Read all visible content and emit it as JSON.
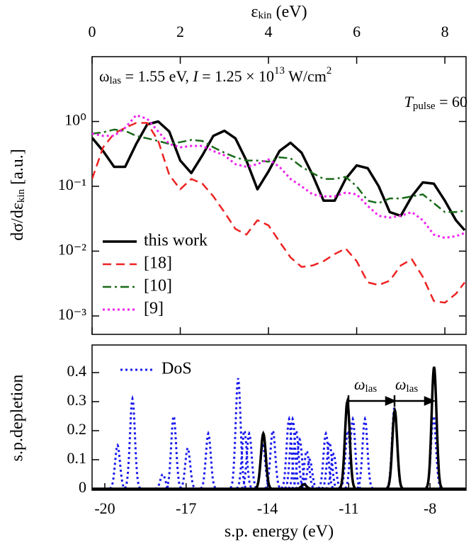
{
  "chart_data": [
    {
      "type": "line",
      "xlabel": [
        "ε",
        "kin",
        " (eV)"
      ],
      "ylabel": [
        "dσ/dε",
        "kin",
        " [a.u.]"
      ],
      "annotations": [
        [
          "ω",
          "las",
          " = 1.55 eV, ",
          "I",
          " = 1.25 × 10",
          "13",
          " W/cm",
          "2"
        ],
        [
          "T",
          "pulse",
          " = 60"
        ]
      ],
      "x": [
        0,
        0.25,
        0.5,
        0.75,
        1.0,
        1.25,
        1.5,
        1.75,
        2.0,
        2.25,
        2.5,
        2.75,
        3.0,
        3.25,
        3.5,
        3.75,
        4.0,
        4.25,
        4.5,
        4.75,
        5.0,
        5.25,
        5.5,
        5.75,
        6.0,
        6.25,
        6.5,
        6.75,
        7.0,
        7.25,
        7.5,
        7.75,
        8.0,
        8.25,
        8.45
      ],
      "series": [
        {
          "name": "this work",
          "color": "#000000",
          "dash": "solid",
          "values": [
            0.56,
            0.35,
            0.2,
            0.2,
            0.45,
            0.9,
            1.0,
            0.7,
            0.25,
            0.16,
            0.3,
            0.6,
            0.72,
            0.55,
            0.25,
            0.09,
            0.17,
            0.35,
            0.47,
            0.33,
            0.15,
            0.06,
            0.06,
            0.13,
            0.21,
            0.19,
            0.1,
            0.04,
            0.035,
            0.07,
            0.115,
            0.11,
            0.06,
            0.03,
            0.021
          ]
        },
        {
          "name": "[18]",
          "color": "#ee2222",
          "dash": "dashed",
          "values": [
            0.13,
            0.4,
            0.65,
            0.8,
            0.95,
            0.95,
            0.5,
            0.15,
            0.09,
            0.13,
            0.11,
            0.07,
            0.04,
            0.022,
            0.018,
            0.03,
            0.025,
            0.014,
            0.008,
            0.0057,
            0.006,
            0.007,
            0.009,
            0.011,
            0.007,
            0.0033,
            0.003,
            0.0035,
            0.006,
            0.0075,
            0.004,
            0.0017,
            0.0016,
            0.0022,
            0.0033
          ]
        },
        {
          "name": "[10]",
          "color": "#1a6a1a",
          "dash": "dashdot",
          "values": [
            0.65,
            0.68,
            0.75,
            0.72,
            0.6,
            0.55,
            0.5,
            0.45,
            0.48,
            0.52,
            0.5,
            0.4,
            0.33,
            0.28,
            0.25,
            0.25,
            0.24,
            0.28,
            0.27,
            0.2,
            0.16,
            0.13,
            0.13,
            0.14,
            0.1,
            0.06,
            0.055,
            0.065,
            0.065,
            0.07,
            0.075,
            0.055,
            0.04,
            0.04,
            0.042
          ]
        },
        {
          "name": "[9]",
          "color": "#ee22ee",
          "dash": "dotted",
          "values": [
            0.65,
            0.6,
            0.6,
            0.8,
            1.25,
            1.1,
            0.7,
            0.45,
            0.4,
            0.42,
            0.42,
            0.35,
            0.3,
            0.22,
            0.2,
            0.22,
            0.26,
            0.2,
            0.13,
            0.1,
            0.075,
            0.07,
            0.07,
            0.08,
            0.075,
            0.05,
            0.035,
            0.033,
            0.035,
            0.04,
            0.03,
            0.018,
            0.016,
            0.017,
            0.019
          ]
        }
      ],
      "xlim": [
        0,
        8.48
      ],
      "ylim": [
        0.00052,
        10
      ],
      "log_y": true,
      "xticks": [
        0,
        2,
        4,
        6,
        8
      ],
      "yticks": [
        {
          "value": 1,
          "label": "10⁰"
        },
        {
          "value": 0.1,
          "label": "10⁻¹"
        },
        {
          "value": 0.01,
          "label": "10⁻²"
        },
        {
          "value": 0.001,
          "label": "10⁻³"
        }
      ],
      "legend": "lower left"
    },
    {
      "type": "spectrum",
      "xlabel": "s.p. energy (eV)",
      "ylabel": "s.p.depletion",
      "annotations": [
        [
          "ω",
          "las"
        ],
        [
          "ω",
          "las"
        ]
      ],
      "series": [
        {
          "color": "#000000",
          "dash": "solid",
          "x": [
            -14.15,
            -12.65,
            -11.05,
            -9.3,
            -7.85
          ],
          "values": [
            0.19,
            0.015,
            0.3,
            0.27,
            0.42
          ]
        },
        {
          "name": "DoS",
          "color": "#1a1aee",
          "dash": "dotted",
          "x": [
            -19.53,
            -18.98,
            -17.86,
            -17.46,
            -16.94,
            -16.18,
            -15.08,
            -14.85,
            -14.67,
            -14.17,
            -13.8,
            -13.2,
            -13.07,
            -12.94,
            -12.81,
            -12.55,
            -12.44,
            -11.84,
            -11.71,
            -11.56,
            -11.03,
            -10.85,
            -10.4,
            -9.31,
            -7.87
          ],
          "values": [
            0.15,
            0.31,
            0.05,
            0.25,
            0.14,
            0.19,
            0.38,
            0.2,
            0.19,
            0.15,
            0.2,
            0.24,
            0.24,
            0.2,
            0.17,
            0.13,
            0.1,
            0.19,
            0.16,
            0.12,
            0.2,
            0.24,
            0.24,
            0.28,
            0.25
          ]
        }
      ],
      "xlim": [
        -20.47,
        -6.67
      ],
      "ylim": [
        -0.005,
        0.495
      ],
      "xticks": [
        -20,
        -17,
        -14,
        -11,
        -8
      ],
      "yticks": [
        0,
        0.1,
        0.2,
        0.3,
        0.4
      ],
      "legend": "upper left"
    }
  ]
}
